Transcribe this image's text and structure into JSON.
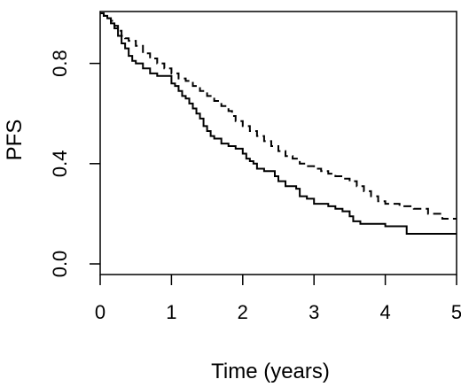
{
  "chart_data": {
    "type": "line",
    "title": "",
    "xlabel": "Time (years)",
    "ylabel": "PFS",
    "xlim": [
      0,
      5
    ],
    "ylim": [
      0,
      1
    ],
    "x_ticks": [
      0,
      1,
      2,
      3,
      4,
      5
    ],
    "x_tick_labels": [
      "0",
      "1",
      "2",
      "3",
      "4",
      "5"
    ],
    "y_ticks": [
      0,
      0.4,
      0.8
    ],
    "y_tick_labels": [
      "0.0",
      "0.4",
      "0.8"
    ],
    "grid": false,
    "legend": "none",
    "step": true,
    "series": [
      {
        "style": "solid",
        "color": "#000000",
        "points": [
          [
            0,
            1.0
          ],
          [
            0.05,
            0.99
          ],
          [
            0.1,
            0.98
          ],
          [
            0.15,
            0.96
          ],
          [
            0.2,
            0.94
          ],
          [
            0.25,
            0.91
          ],
          [
            0.3,
            0.88
          ],
          [
            0.35,
            0.86
          ],
          [
            0.4,
            0.83
          ],
          [
            0.45,
            0.81
          ],
          [
            0.5,
            0.8
          ],
          [
            0.6,
            0.78
          ],
          [
            0.7,
            0.76
          ],
          [
            0.8,
            0.75
          ],
          [
            1.0,
            0.72
          ],
          [
            1.05,
            0.71
          ],
          [
            1.1,
            0.69
          ],
          [
            1.15,
            0.67
          ],
          [
            1.2,
            0.66
          ],
          [
            1.25,
            0.64
          ],
          [
            1.3,
            0.62
          ],
          [
            1.35,
            0.6
          ],
          [
            1.4,
            0.58
          ],
          [
            1.45,
            0.55
          ],
          [
            1.5,
            0.53
          ],
          [
            1.55,
            0.51
          ],
          [
            1.6,
            0.5
          ],
          [
            1.7,
            0.48
          ],
          [
            1.8,
            0.47
          ],
          [
            1.9,
            0.46
          ],
          [
            2.0,
            0.44
          ],
          [
            2.05,
            0.42
          ],
          [
            2.1,
            0.41
          ],
          [
            2.15,
            0.4
          ],
          [
            2.2,
            0.38
          ],
          [
            2.3,
            0.37
          ],
          [
            2.45,
            0.35
          ],
          [
            2.5,
            0.33
          ],
          [
            2.6,
            0.31
          ],
          [
            2.75,
            0.3
          ],
          [
            2.8,
            0.27
          ],
          [
            2.9,
            0.26
          ],
          [
            3.0,
            0.24
          ],
          [
            3.2,
            0.23
          ],
          [
            3.3,
            0.22
          ],
          [
            3.4,
            0.21
          ],
          [
            3.5,
            0.19
          ],
          [
            3.55,
            0.17
          ],
          [
            3.65,
            0.16
          ],
          [
            4.0,
            0.15
          ],
          [
            4.3,
            0.12
          ],
          [
            5.0,
            0.12
          ]
        ]
      },
      {
        "style": "dashed",
        "color": "#000000",
        "points": [
          [
            0,
            1.0
          ],
          [
            0.05,
            0.99
          ],
          [
            0.1,
            0.98
          ],
          [
            0.15,
            0.97
          ],
          [
            0.2,
            0.95
          ],
          [
            0.25,
            0.93
          ],
          [
            0.3,
            0.91
          ],
          [
            0.35,
            0.9
          ],
          [
            0.4,
            0.89
          ],
          [
            0.5,
            0.87
          ],
          [
            0.6,
            0.84
          ],
          [
            0.7,
            0.82
          ],
          [
            0.8,
            0.8
          ],
          [
            0.9,
            0.78
          ],
          [
            1.0,
            0.76
          ],
          [
            1.1,
            0.74
          ],
          [
            1.2,
            0.73
          ],
          [
            1.3,
            0.71
          ],
          [
            1.4,
            0.69
          ],
          [
            1.5,
            0.67
          ],
          [
            1.6,
            0.65
          ],
          [
            1.7,
            0.63
          ],
          [
            1.8,
            0.61
          ],
          [
            1.85,
            0.59
          ],
          [
            1.9,
            0.57
          ],
          [
            2.0,
            0.55
          ],
          [
            2.1,
            0.53
          ],
          [
            2.2,
            0.51
          ],
          [
            2.3,
            0.49
          ],
          [
            2.4,
            0.47
          ],
          [
            2.5,
            0.45
          ],
          [
            2.6,
            0.43
          ],
          [
            2.7,
            0.42
          ],
          [
            2.8,
            0.4
          ],
          [
            2.9,
            0.39
          ],
          [
            3.0,
            0.38
          ],
          [
            3.1,
            0.37
          ],
          [
            3.2,
            0.36
          ],
          [
            3.3,
            0.35
          ],
          [
            3.4,
            0.34
          ],
          [
            3.5,
            0.33
          ],
          [
            3.6,
            0.31
          ],
          [
            3.7,
            0.29
          ],
          [
            3.8,
            0.27
          ],
          [
            3.9,
            0.25
          ],
          [
            4.0,
            0.24
          ],
          [
            4.2,
            0.23
          ],
          [
            4.4,
            0.22
          ],
          [
            4.6,
            0.2
          ],
          [
            4.8,
            0.18
          ],
          [
            5.0,
            0.18
          ]
        ]
      }
    ]
  }
}
